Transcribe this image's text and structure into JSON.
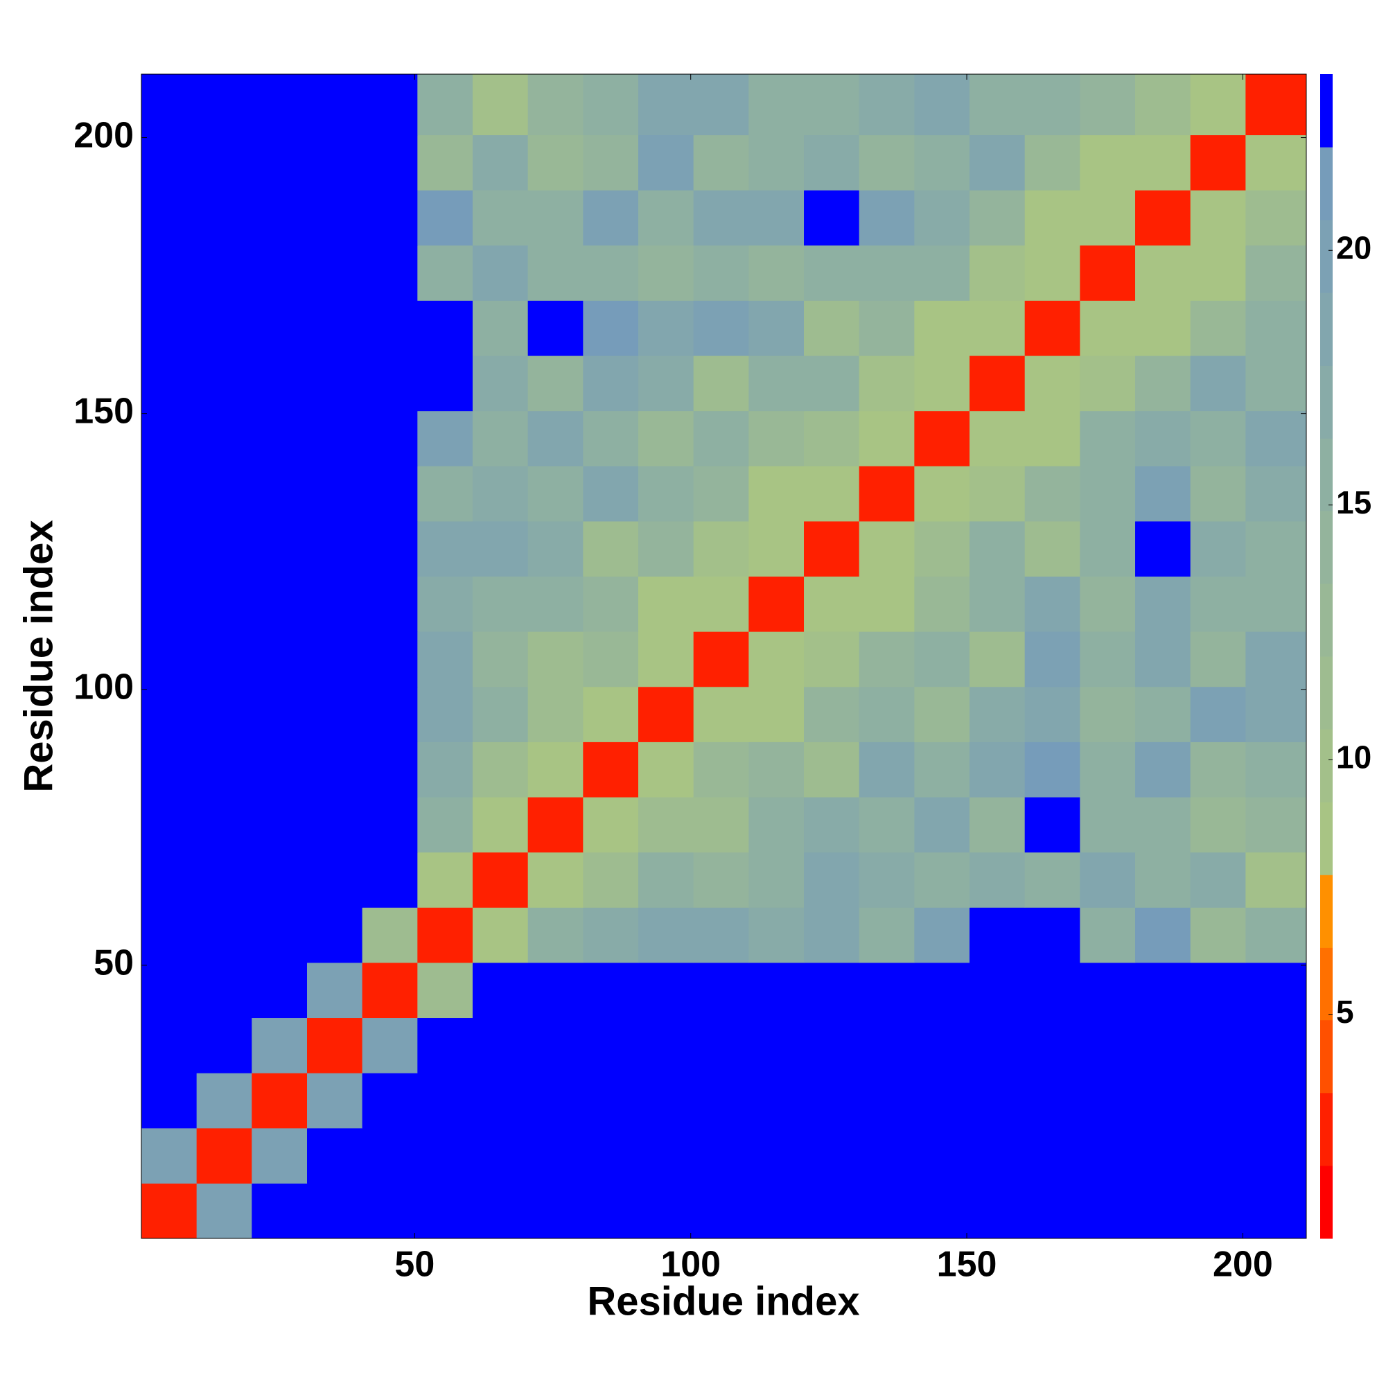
{
  "chart_data": {
    "type": "heatmap",
    "xlabel": "Residue index",
    "ylabel": "Residue index",
    "xlim": [
      0.5,
      211.5
    ],
    "ylim": [
      0.5,
      211.5
    ],
    "xticks": [
      50,
      100,
      150,
      200
    ],
    "yticks": [
      50,
      100,
      150,
      200
    ],
    "xbins": [
      0.5,
      10.5,
      20.5,
      30.5,
      40.5,
      50.5,
      60.5,
      70.5,
      80.5,
      90.5,
      100.5,
      110.5,
      120.5,
      130.5,
      140.5,
      150.5,
      160.5,
      170.5,
      180.5,
      190.5,
      200.5,
      211.5
    ],
    "ybins": [
      0.5,
      10.5,
      20.5,
      30.5,
      40.5,
      50.5,
      60.5,
      70.5,
      80.5,
      90.5,
      100.5,
      110.5,
      120.5,
      130.5,
      140.5,
      150.5,
      160.5,
      170.5,
      180.5,
      190.5,
      200.5,
      211.5
    ],
    "z": [
      [
        2.5,
        20,
        23,
        23,
        23,
        23,
        23,
        23,
        23,
        23,
        23,
        23,
        23,
        23,
        23,
        23,
        23,
        23,
        23,
        23,
        23
      ],
      [
        20,
        2.5,
        20,
        23,
        23,
        23,
        23,
        23,
        23,
        23,
        23,
        23,
        23,
        23,
        23,
        23,
        23,
        23,
        23,
        23,
        23
      ],
      [
        23,
        20,
        2.5,
        20,
        23,
        23,
        23,
        23,
        23,
        23,
        23,
        23,
        23,
        23,
        23,
        23,
        23,
        23,
        23,
        23,
        23
      ],
      [
        23,
        23,
        20,
        2.5,
        20,
        23,
        23,
        23,
        23,
        23,
        23,
        23,
        23,
        23,
        23,
        23,
        23,
        23,
        23,
        23,
        23
      ],
      [
        23,
        23,
        23,
        20,
        2.5,
        12,
        23,
        23,
        23,
        23,
        23,
        23,
        23,
        23,
        23,
        23,
        23,
        23,
        23,
        23,
        23
      ],
      [
        23,
        23,
        23,
        23,
        12,
        3,
        9,
        16,
        17,
        18,
        19,
        17,
        18,
        16,
        20,
        23,
        23,
        16,
        21,
        13,
        15
      ],
      [
        23,
        23,
        23,
        23,
        23,
        9,
        3,
        9,
        12,
        15,
        14,
        16,
        18,
        17,
        15,
        17,
        16,
        19,
        15,
        17,
        10
      ],
      [
        23,
        23,
        23,
        23,
        23,
        16,
        9,
        3,
        9,
        11,
        12,
        15,
        17,
        15,
        18,
        14,
        23,
        15,
        16,
        13,
        14
      ],
      [
        23,
        23,
        23,
        23,
        23,
        17,
        12,
        9,
        3,
        9,
        13,
        14,
        12,
        19,
        16,
        18,
        21,
        15,
        20,
        14,
        16
      ],
      [
        23,
        23,
        23,
        23,
        23,
        18,
        15,
        11,
        9,
        3,
        9,
        8,
        14,
        16,
        13,
        17,
        19,
        14,
        16,
        20,
        18
      ],
      [
        23,
        23,
        23,
        23,
        23,
        19,
        14,
        12,
        13,
        9,
        3,
        9,
        10,
        14,
        15,
        12,
        20,
        16,
        18,
        14,
        19
      ],
      [
        23,
        23,
        23,
        23,
        23,
        17,
        16,
        15,
        14,
        8,
        9,
        3,
        9,
        9,
        13,
        16,
        18,
        14,
        19,
        16,
        15
      ],
      [
        23,
        23,
        23,
        23,
        23,
        18,
        18,
        17,
        12,
        14,
        10,
        9,
        3,
        9,
        11,
        15,
        12,
        15,
        23,
        17,
        15
      ],
      [
        23,
        23,
        23,
        23,
        23,
        16,
        17,
        15,
        19,
        16,
        14,
        9,
        9,
        3,
        9,
        10,
        14,
        16,
        20,
        14,
        17
      ],
      [
        23,
        23,
        23,
        23,
        23,
        20,
        15,
        18,
        16,
        13,
        15,
        13,
        11,
        9,
        3,
        9,
        8,
        15,
        17,
        16,
        19
      ],
      [
        23,
        23,
        23,
        23,
        23,
        23,
        17,
        14,
        18,
        17,
        12,
        16,
        15,
        10,
        9,
        3,
        9,
        10,
        14,
        19,
        16
      ],
      [
        23,
        23,
        23,
        23,
        23,
        23,
        16,
        23,
        21,
        19,
        20,
        18,
        12,
        14,
        8,
        9,
        3,
        9,
        9,
        13,
        15
      ],
      [
        23,
        23,
        23,
        23,
        23,
        16,
        19,
        15,
        15,
        14,
        16,
        14,
        15,
        16,
        15,
        10,
        9,
        3,
        9,
        8,
        14
      ],
      [
        23,
        23,
        23,
        23,
        23,
        21,
        15,
        16,
        20,
        16,
        18,
        19,
        23,
        20,
        17,
        14,
        9,
        9,
        3,
        9,
        11
      ],
      [
        23,
        23,
        23,
        23,
        23,
        13,
        17,
        13,
        14,
        20,
        14,
        16,
        17,
        14,
        16,
        19,
        13,
        8,
        9,
        3,
        9
      ],
      [
        23,
        23,
        23,
        23,
        23,
        15,
        10,
        14,
        16,
        18,
        19,
        15,
        15,
        17,
        19,
        16,
        15,
        14,
        11,
        9,
        3
      ]
    ],
    "levels": [
      0.6,
      2.03,
      3.46,
      4.89,
      6.31,
      7.74,
      9.17,
      10.6,
      12.03,
      13.46,
      14.89,
      16.31,
      17.74,
      19.17,
      20.6,
      22.03,
      23.46
    ],
    "colors": [
      "#ff0000",
      "#ff2000",
      "#ff5000",
      "#ff7000",
      "#ff9000",
      "#a8c484",
      "#a3c08a",
      "#9ebc90",
      "#99b896",
      "#94b49c",
      "#8eb0a2",
      "#88aba8",
      "#82a6ae",
      "#7ca1b4",
      "#769cba",
      "#0000ff"
    ],
    "cticks": [
      5,
      10,
      15,
      20
    ]
  }
}
